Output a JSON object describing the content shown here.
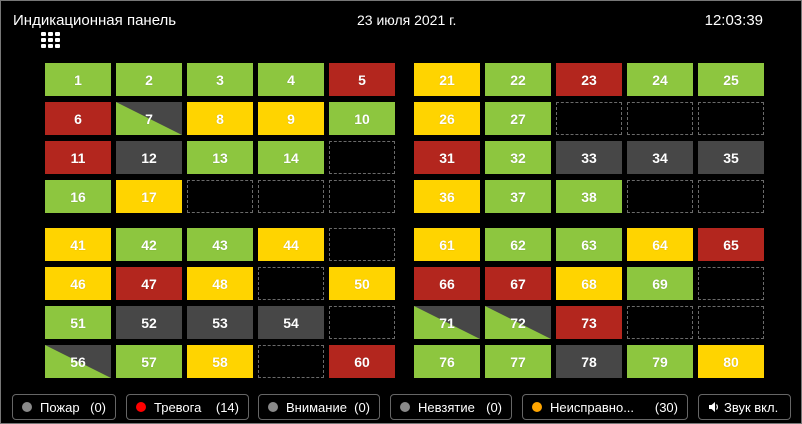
{
  "header": {
    "title": "Индикационная панель",
    "date": "23 июля 2021 г.",
    "time": "12:03:39"
  },
  "colors": {
    "green": "#8dc63f",
    "yellow": "#ffd400",
    "red": "#b3261e",
    "gray": "#474747"
  },
  "panels": [
    {
      "cells": [
        {
          "n": "1",
          "s": "green"
        },
        {
          "n": "2",
          "s": "green"
        },
        {
          "n": "3",
          "s": "green"
        },
        {
          "n": "4",
          "s": "green"
        },
        {
          "n": "5",
          "s": "red"
        },
        {
          "n": "6",
          "s": "red"
        },
        {
          "n": "7",
          "s": "split"
        },
        {
          "n": "8",
          "s": "yellow"
        },
        {
          "n": "9",
          "s": "yellow"
        },
        {
          "n": "10",
          "s": "green"
        },
        {
          "n": "11",
          "s": "red"
        },
        {
          "n": "12",
          "s": "gray"
        },
        {
          "n": "13",
          "s": "green"
        },
        {
          "n": "14",
          "s": "green"
        },
        {
          "n": "",
          "s": "empty"
        },
        {
          "n": "16",
          "s": "green"
        },
        {
          "n": "17",
          "s": "yellow"
        },
        {
          "n": "",
          "s": "empty"
        },
        {
          "n": "",
          "s": "empty"
        },
        {
          "n": "",
          "s": "empty"
        }
      ]
    },
    {
      "cells": [
        {
          "n": "21",
          "s": "yellow"
        },
        {
          "n": "22",
          "s": "green"
        },
        {
          "n": "23",
          "s": "red"
        },
        {
          "n": "24",
          "s": "green"
        },
        {
          "n": "25",
          "s": "green"
        },
        {
          "n": "26",
          "s": "yellow"
        },
        {
          "n": "27",
          "s": "green"
        },
        {
          "n": "",
          "s": "empty"
        },
        {
          "n": "",
          "s": "empty"
        },
        {
          "n": "",
          "s": "empty"
        },
        {
          "n": "31",
          "s": "red"
        },
        {
          "n": "32",
          "s": "green"
        },
        {
          "n": "33",
          "s": "gray"
        },
        {
          "n": "34",
          "s": "gray"
        },
        {
          "n": "35",
          "s": "gray"
        },
        {
          "n": "36",
          "s": "yellow"
        },
        {
          "n": "37",
          "s": "green"
        },
        {
          "n": "38",
          "s": "green"
        },
        {
          "n": "",
          "s": "empty"
        },
        {
          "n": "",
          "s": "empty"
        }
      ]
    },
    {
      "cells": [
        {
          "n": "41",
          "s": "yellow"
        },
        {
          "n": "42",
          "s": "green"
        },
        {
          "n": "43",
          "s": "green"
        },
        {
          "n": "44",
          "s": "yellow"
        },
        {
          "n": "",
          "s": "empty"
        },
        {
          "n": "46",
          "s": "yellow"
        },
        {
          "n": "47",
          "s": "red"
        },
        {
          "n": "48",
          "s": "yellow"
        },
        {
          "n": "",
          "s": "empty"
        },
        {
          "n": "50",
          "s": "yellow"
        },
        {
          "n": "51",
          "s": "green"
        },
        {
          "n": "52",
          "s": "gray"
        },
        {
          "n": "53",
          "s": "gray"
        },
        {
          "n": "54",
          "s": "gray"
        },
        {
          "n": "",
          "s": "empty"
        },
        {
          "n": "56",
          "s": "split"
        },
        {
          "n": "57",
          "s": "green"
        },
        {
          "n": "58",
          "s": "yellow"
        },
        {
          "n": "",
          "s": "empty"
        },
        {
          "n": "60",
          "s": "red"
        }
      ]
    },
    {
      "cells": [
        {
          "n": "61",
          "s": "yellow"
        },
        {
          "n": "62",
          "s": "green"
        },
        {
          "n": "63",
          "s": "green"
        },
        {
          "n": "64",
          "s": "yellow"
        },
        {
          "n": "65",
          "s": "red"
        },
        {
          "n": "66",
          "s": "red"
        },
        {
          "n": "67",
          "s": "red"
        },
        {
          "n": "68",
          "s": "yellow"
        },
        {
          "n": "69",
          "s": "green"
        },
        {
          "n": "",
          "s": "empty"
        },
        {
          "n": "71",
          "s": "split"
        },
        {
          "n": "72",
          "s": "split"
        },
        {
          "n": "73",
          "s": "red"
        },
        {
          "n": "",
          "s": "empty"
        },
        {
          "n": "",
          "s": "empty"
        },
        {
          "n": "76",
          "s": "green"
        },
        {
          "n": "77",
          "s": "green"
        },
        {
          "n": "78",
          "s": "gray"
        },
        {
          "n": "79",
          "s": "green"
        },
        {
          "n": "80",
          "s": "yellow"
        }
      ]
    }
  ],
  "footer": {
    "fire": {
      "label": "Пожар",
      "count": "(0)",
      "dot": "#8a8a8a"
    },
    "alarm": {
      "label": "Тревога",
      "count": "(14)",
      "dot": "#ff0000"
    },
    "attention": {
      "label": "Внимание",
      "count": "(0)",
      "dot": "#8a8a8a"
    },
    "notarmed": {
      "label": "Невзятие",
      "count": "(0)",
      "dot": "#8a8a8a"
    },
    "fault": {
      "label": "Неисправно...",
      "count": "(30)",
      "dot": "#ffa500"
    },
    "sound": {
      "label": "Звук вкл.",
      "icon": "speaker-icon"
    }
  }
}
